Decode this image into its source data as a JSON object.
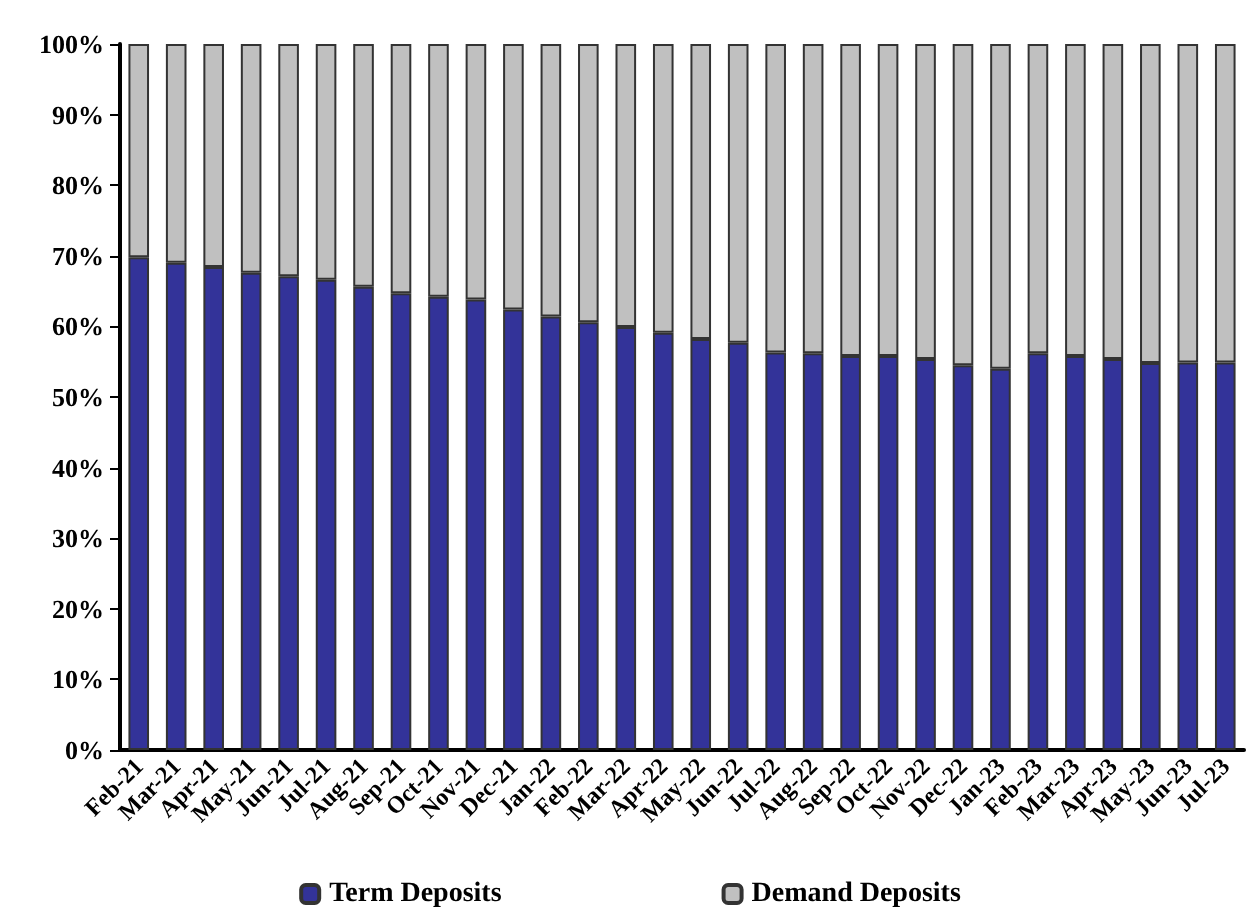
{
  "chart_data": {
    "type": "bar",
    "stacked": true,
    "legend": "bottom",
    "grid": false,
    "categories": [
      "Feb-21",
      "Mar-21",
      "Apr-21",
      "May-21",
      "Jun-21",
      "Jul-21",
      "Aug-21",
      "Sep-21",
      "Oct-21",
      "Nov-21",
      "Dec-21",
      "Jan-22",
      "Feb-22",
      "Mar-22",
      "Apr-22",
      "May-22",
      "Jun-22",
      "Jul-22",
      "Aug-22",
      "Sep-22",
      "Oct-22",
      "Nov-22",
      "Dec-22",
      "Jan-23",
      "Feb-23",
      "Mar-23",
      "Apr-23",
      "May-23",
      "Jun-23",
      "Jul-23"
    ],
    "series": [
      {
        "name": "Term Deposits",
        "color": "#333399",
        "values": [
          69.8,
          69,
          68.4,
          67.6,
          67.1,
          66.6,
          65.6,
          64.7,
          64.2,
          63.8,
          62.4,
          61.4,
          60.6,
          59.9,
          59.1,
          58.2,
          57.7,
          56.3,
          56.2,
          55.8,
          55.8,
          55.4,
          54.5,
          54,
          56.2,
          55.8,
          55.4,
          54.8,
          54.9,
          54.9
        ]
      },
      {
        "name": "Demand Deposits",
        "color": "#c0c0c0",
        "values": [
          30.2,
          31,
          31.6,
          32.4,
          32.9,
          33.4,
          34.4,
          35.3,
          35.8,
          36.2,
          37.6,
          38.6,
          39.4,
          40.1,
          40.9,
          41.8,
          42.3,
          43.7,
          43.8,
          44.2,
          44.2,
          44.6,
          45.5,
          46,
          43.8,
          44.2,
          44.6,
          45.2,
          45.1,
          45.1
        ]
      }
    ],
    "ylim": [
      0,
      100
    ],
    "yticks": [
      {
        "value": 0,
        "label": "0%"
      },
      {
        "value": 10,
        "label": "10%"
      },
      {
        "value": 20,
        "label": "20%"
      },
      {
        "value": 30,
        "label": "30%"
      },
      {
        "value": 40,
        "label": "40%"
      },
      {
        "value": 50,
        "label": "50%"
      },
      {
        "value": 60,
        "label": "60%"
      },
      {
        "value": 70,
        "label": "70%"
      },
      {
        "value": 80,
        "label": "80%"
      },
      {
        "value": 90,
        "label": "90%"
      },
      {
        "value": 100,
        "label": "100%"
      }
    ]
  }
}
